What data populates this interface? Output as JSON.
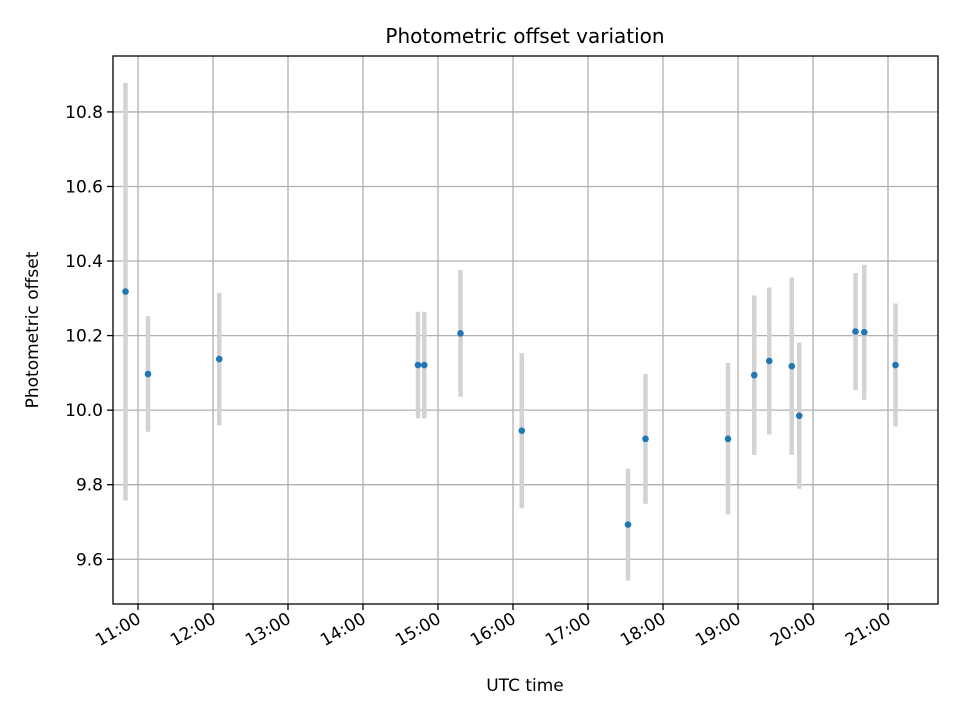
{
  "chart_data": {
    "type": "scatter",
    "title": "Photometric offset variation",
    "xlabel": "UTC time",
    "ylabel": "Photometric offset",
    "x_axis_type": "time",
    "xlim": [
      "10:40",
      "21:40"
    ],
    "ylim": [
      9.48,
      10.95
    ],
    "x_ticks": [
      "11:00",
      "12:00",
      "13:00",
      "14:00",
      "15:00",
      "16:00",
      "17:00",
      "18:00",
      "19:00",
      "20:00",
      "21:00"
    ],
    "y_ticks": [
      9.6,
      9.8,
      10.0,
      10.2,
      10.4,
      10.6,
      10.8
    ],
    "y_tick_labels": [
      "9.6",
      "9.8",
      "10.0",
      "10.2",
      "10.4",
      "10.6",
      "10.8"
    ],
    "grid": true,
    "legend": "none",
    "point_color": "#1f77b4",
    "errorbar_color": "#d3d3d3",
    "points": [
      {
        "x": "10:50",
        "y": 10.318,
        "yerr": 0.56
      },
      {
        "x": "11:08",
        "y": 10.097,
        "yerr": 0.155
      },
      {
        "x": "12:05",
        "y": 10.137,
        "yerr": 0.178
      },
      {
        "x": "14:44",
        "y": 10.121,
        "yerr": 0.143
      },
      {
        "x": "14:49",
        "y": 10.121,
        "yerr": 0.143
      },
      {
        "x": "15:18",
        "y": 10.206,
        "yerr": 0.17
      },
      {
        "x": "16:07",
        "y": 9.945,
        "yerr": 0.208
      },
      {
        "x": "17:32",
        "y": 9.693,
        "yerr": 0.15
      },
      {
        "x": "17:46",
        "y": 9.923,
        "yerr": 0.174
      },
      {
        "x": "18:52",
        "y": 9.923,
        "yerr": 0.203
      },
      {
        "x": "19:13",
        "y": 10.094,
        "yerr": 0.214
      },
      {
        "x": "19:25",
        "y": 10.132,
        "yerr": 0.197
      },
      {
        "x": "19:43",
        "y": 10.118,
        "yerr": 0.238
      },
      {
        "x": "19:49",
        "y": 9.985,
        "yerr": 0.196
      },
      {
        "x": "20:34",
        "y": 10.211,
        "yerr": 0.157
      },
      {
        "x": "20:41",
        "y": 10.209,
        "yerr": 0.181
      },
      {
        "x": "21:06",
        "y": 10.121,
        "yerr": 0.165
      }
    ]
  }
}
